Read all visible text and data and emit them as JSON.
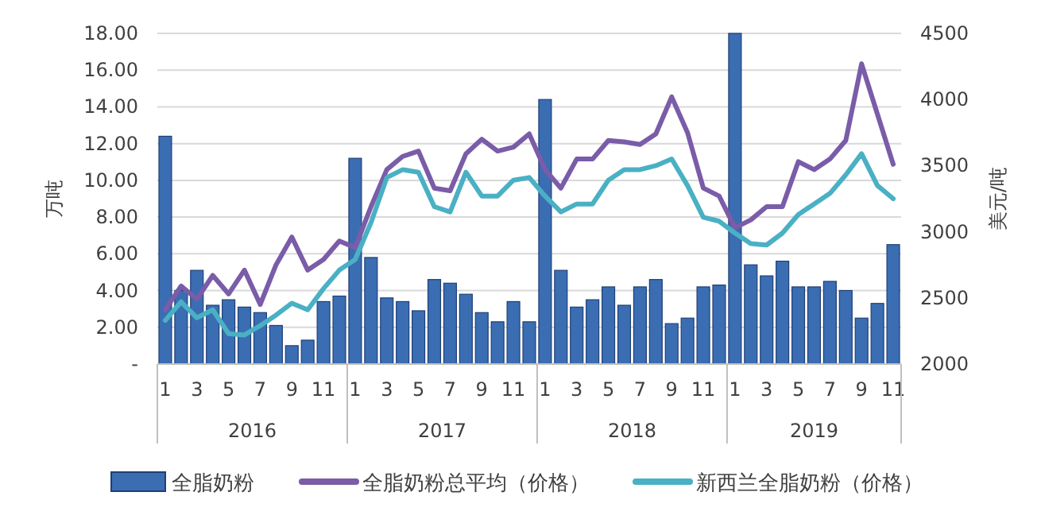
{
  "chart_data": {
    "type": "bar",
    "ylabel": "万吨",
    "y2label": "美元/吨",
    "categories": [
      "1",
      null,
      "3",
      null,
      "5",
      null,
      "7",
      null,
      "9",
      null,
      "11",
      null,
      "1",
      null,
      "3",
      null,
      "5",
      null,
      "7",
      null,
      "9",
      null,
      "11",
      null,
      "1",
      null,
      "3",
      null,
      "5",
      null,
      "7",
      null,
      "9",
      null,
      "11",
      null,
      "1",
      null,
      "3",
      null,
      "5",
      null,
      "7",
      null,
      "9",
      null,
      "11"
    ],
    "series": [
      {
        "name": "全脂奶粉",
        "color": "#3b6db3",
        "values": [
          12.4,
          4.0,
          5.1,
          3.2,
          3.5,
          3.1,
          2.8,
          2.1,
          1.0,
          1.3,
          3.4,
          3.7,
          11.2,
          5.8,
          3.6,
          3.4,
          2.9,
          4.6,
          4.4,
          3.8,
          2.8,
          2.3,
          3.4,
          2.3,
          14.4,
          5.1,
          3.1,
          3.5,
          4.2,
          3.2,
          4.2,
          4.6,
          2.2,
          2.5,
          4.2,
          4.3,
          18.0,
          5.4,
          4.8,
          5.6,
          4.2,
          4.2,
          4.5,
          4.0,
          2.5,
          3.3,
          6.5
        ]
      },
      {
        "name": "全脂奶粉总平均（价格）",
        "type": "line",
        "axis": "y2",
        "color": "#7a5ca8",
        "values": [
          2410,
          2590,
          2490,
          2670,
          2530,
          2710,
          2450,
          2750,
          2960,
          2710,
          2790,
          2930,
          2880,
          3190,
          3470,
          3570,
          3610,
          3330,
          3310,
          3590,
          3700,
          3610,
          3640,
          3740,
          3470,
          3330,
          3550,
          3550,
          3690,
          3680,
          3660,
          3740,
          4020,
          3750,
          3330,
          3270,
          3030,
          3090,
          3190,
          3190,
          3530,
          3470,
          3550,
          3690,
          4270,
          3890,
          3510
        ]
      },
      {
        "name": "新西兰全脂奶粉（价格）",
        "type": "line",
        "axis": "y2",
        "color": "#4ab0c4",
        "values": [
          2330,
          2470,
          2350,
          2410,
          2230,
          2220,
          2290,
          2370,
          2460,
          2410,
          2570,
          2710,
          2790,
          3070,
          3410,
          3470,
          3450,
          3190,
          3150,
          3450,
          3270,
          3270,
          3390,
          3410,
          3270,
          3150,
          3210,
          3210,
          3390,
          3470,
          3470,
          3500,
          3550,
          3350,
          3110,
          3080,
          2990,
          2910,
          2900,
          2990,
          3130,
          3210,
          3290,
          3430,
          3590,
          3350,
          3250
        ]
      }
    ],
    "ylim": [
      0,
      18
    ],
    "yticks": [
      {
        "value": 0,
        "label": "-"
      },
      {
        "value": 2,
        "label": "2.00"
      },
      {
        "value": 4,
        "label": "4.00"
      },
      {
        "value": 6,
        "label": "6.00"
      },
      {
        "value": 8,
        "label": "8.00"
      },
      {
        "value": 10,
        "label": "10.00"
      },
      {
        "value": 12,
        "label": "12.00"
      },
      {
        "value": 14,
        "label": "14.00"
      },
      {
        "value": 16,
        "label": "16.00"
      },
      {
        "value": 18,
        "label": "18.00"
      }
    ],
    "y2lim": [
      2000,
      4500
    ],
    "y2ticks": [
      2000,
      2500,
      3000,
      3500,
      4000,
      4500
    ],
    "grid": "y",
    "legend": "bottom",
    "annotations": [
      "2016",
      "2017",
      "2018",
      "2019"
    ]
  }
}
